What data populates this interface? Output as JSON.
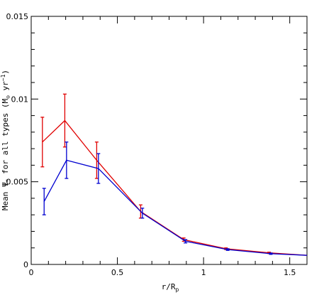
{
  "chart_data": {
    "type": "line",
    "xlabel": "r/R",
    "xlabel_sub": "p",
    "ylabel_main": "Mean Ψ",
    "ylabel_star": "*",
    "ylabel_rest": " for all types (M",
    "ylabel_sun": "⊙",
    "ylabel_unit": " yr",
    "ylabel_exp": "−1",
    "ylabel_close": ")",
    "xlim": [
      0,
      1.6
    ],
    "ylim": [
      0,
      0.015
    ],
    "x_ticks": [
      0,
      0.5,
      1,
      1.5
    ],
    "x_tick_labels": [
      "0",
      "0.5",
      "1",
      "1.5"
    ],
    "y_ticks": [
      0,
      0.005,
      0.01,
      0.015
    ],
    "y_tick_labels": [
      "0",
      "0.005",
      "0.01",
      "0.015"
    ],
    "grid": false,
    "series": [
      {
        "color": "#e00000",
        "x": [
          0.065,
          0.195,
          0.38,
          0.635,
          0.885,
          1.13,
          1.38,
          1.6
        ],
        "y": [
          0.0074,
          0.0087,
          0.0063,
          0.0032,
          0.0015,
          0.00095,
          0.0007,
          0.00055
        ],
        "err": [
          0.0015,
          0.0016,
          0.0011,
          0.0004,
          0.0001,
          5e-05,
          4e-05,
          0
        ]
      },
      {
        "color": "#0000d0",
        "x": [
          0.075,
          0.205,
          0.39,
          0.645,
          0.895,
          1.14,
          1.39,
          1.6
        ],
        "y": [
          0.0038,
          0.0063,
          0.0058,
          0.0031,
          0.0014,
          0.0009,
          0.00065,
          0.00055
        ],
        "err": [
          0.0008,
          0.0011,
          0.0009,
          0.0003,
          0.0001,
          5e-05,
          4e-05,
          0
        ]
      }
    ]
  }
}
